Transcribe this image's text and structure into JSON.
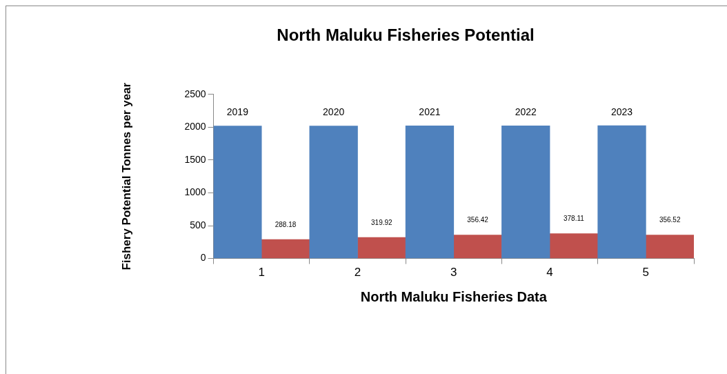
{
  "chart_data": {
    "type": "bar",
    "title": "North Maluku Fisheries Potential",
    "xlabel": "North Maluku Fisheries Data",
    "ylabel": "Fishery Potential Tonnes per year",
    "categories": [
      "1",
      "2",
      "3",
      "4",
      "5"
    ],
    "series": [
      {
        "color": "#4f81bd",
        "values": [
          2019,
          2020,
          2021,
          2022,
          2023
        ]
      },
      {
        "color": "#c0504d",
        "values": [
          288.18,
          319.92,
          356.42,
          378.11,
          356.52
        ]
      }
    ],
    "ylim": [
      0,
      2500
    ],
    "yticks": [
      0,
      500,
      1000,
      1500,
      2000,
      2500
    ],
    "grid": false,
    "legend": false,
    "data_labels": true
  }
}
